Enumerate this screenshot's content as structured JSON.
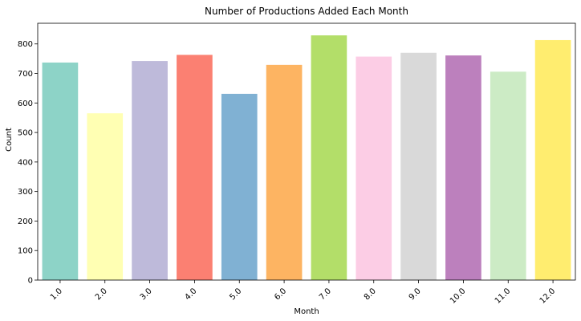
{
  "chart_data": {
    "type": "bar",
    "title": "Number of Productions Added Each Month",
    "xlabel": "Month",
    "ylabel": "Count",
    "categories": [
      "1.0",
      "2.0",
      "3.0",
      "4.0",
      "5.0",
      "6.0",
      "7.0",
      "8.0",
      "9.0",
      "10.0",
      "11.0",
      "12.0"
    ],
    "values": [
      737,
      565,
      742,
      763,
      631,
      729,
      829,
      757,
      770,
      761,
      706,
      813
    ],
    "ylim": [
      0,
      870
    ],
    "yticks": [
      0,
      100,
      200,
      300,
      400,
      500,
      600,
      700,
      800
    ],
    "grid": false,
    "colors": [
      "#8dd3c7",
      "#ffffb3",
      "#bebada",
      "#fb8072",
      "#80b1d3",
      "#fdb462",
      "#b3de69",
      "#fccde5",
      "#d9d9d9",
      "#bc80bd",
      "#ccebc5",
      "#ffed6f"
    ]
  }
}
